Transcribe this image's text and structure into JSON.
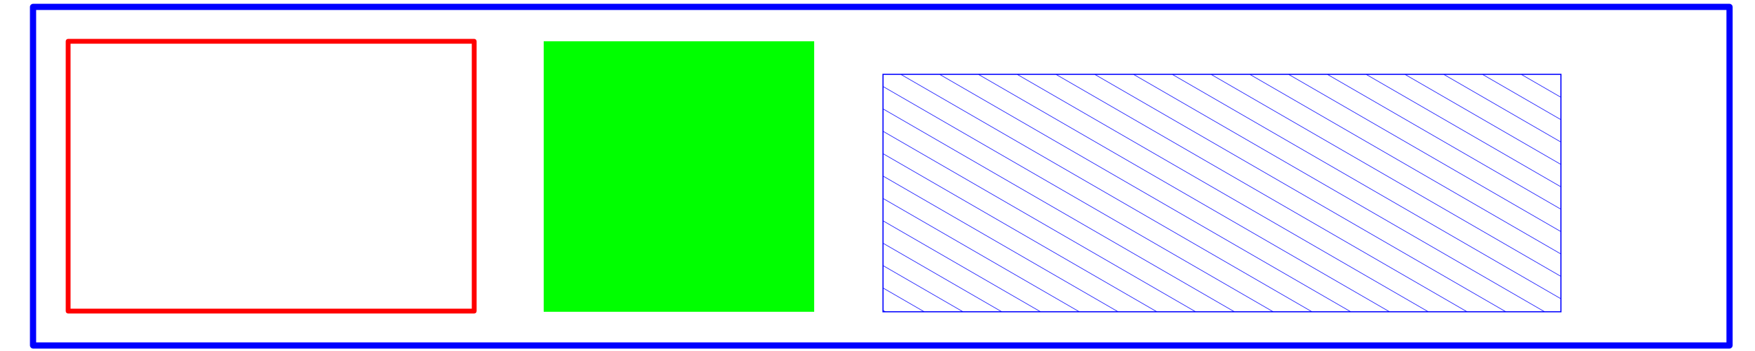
{
  "colors": {
    "background": "#ffffff",
    "frame_stroke": "#0000ff",
    "outlined_box_stroke": "#ff0000",
    "filled_box_fill": "#00ff00",
    "hatched_box_stroke": "#0000ff",
    "hatch_lines": "#0000ff"
  },
  "shapes": {
    "frame": {
      "style": "outline"
    },
    "outlined_box": {
      "style": "outline"
    },
    "filled_box": {
      "style": "solid-fill"
    },
    "hatched_box": {
      "style": "diagonal-hatch"
    }
  }
}
